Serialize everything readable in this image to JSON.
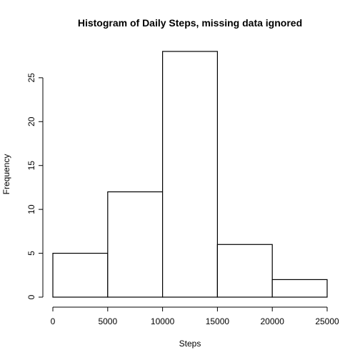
{
  "chart_data": {
    "type": "bar",
    "title": "Histogram of Daily Steps, missing data ignored",
    "xlabel": "Steps",
    "ylabel": "Frequency",
    "bins": [
      {
        "from": 0,
        "to": 5000,
        "count": 5
      },
      {
        "from": 5000,
        "to": 10000,
        "count": 12
      },
      {
        "from": 10000,
        "to": 15000,
        "count": 28
      },
      {
        "from": 15000,
        "to": 20000,
        "count": 6
      },
      {
        "from": 20000,
        "to": 25000,
        "count": 2
      }
    ],
    "xlim": [
      0,
      25000
    ],
    "ylim": [
      0,
      28
    ],
    "x_ticks": [
      0,
      5000,
      10000,
      15000,
      20000,
      25000
    ],
    "y_ticks": [
      0,
      5,
      10,
      15,
      20,
      25
    ],
    "grid": false,
    "legend": "none",
    "bar_fill": "#ffffff",
    "bar_stroke": "#000000"
  }
}
